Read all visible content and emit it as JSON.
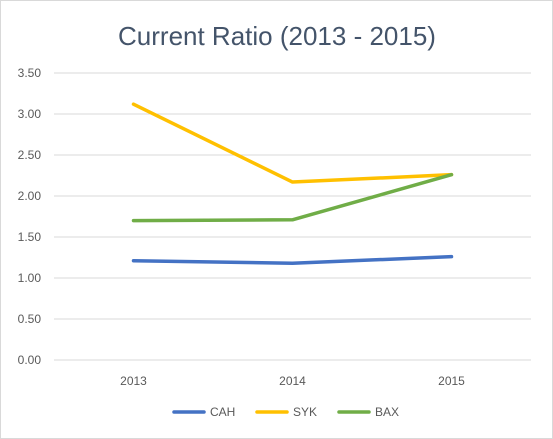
{
  "chart_data": {
    "type": "line",
    "title": "Current Ratio (2013 - 2015)",
    "xlabel": "",
    "ylabel": "",
    "categories": [
      "2013",
      "2014",
      "2015"
    ],
    "ylim": [
      0,
      3.5
    ],
    "yticks": [
      "0.00",
      "0.50",
      "1.00",
      "1.50",
      "2.00",
      "2.50",
      "3.00",
      "3.50"
    ],
    "grid": true,
    "legend": "bottom",
    "series": [
      {
        "name": "CAH",
        "color": "#4472c4",
        "values": [
          1.21,
          1.18,
          1.26
        ]
      },
      {
        "name": "SYK",
        "color": "#ffc000",
        "values": [
          3.12,
          2.17,
          2.26
        ]
      },
      {
        "name": "BAX",
        "color": "#70ad47",
        "values": [
          1.7,
          1.71,
          2.26
        ]
      }
    ]
  }
}
